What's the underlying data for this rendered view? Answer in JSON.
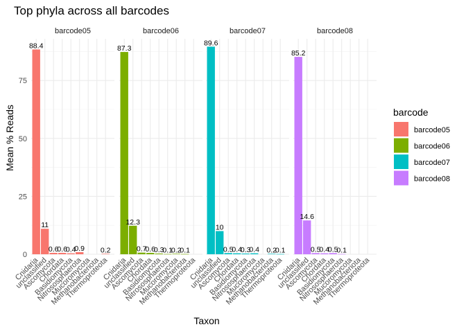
{
  "chart_data": {
    "type": "bar",
    "title": "Top phyla across all barcodes",
    "xlabel": "Taxon",
    "ylabel": "Mean % Reads",
    "ylim": [
      0,
      93
    ],
    "yticks": [
      0,
      25,
      50,
      75
    ],
    "grid": true,
    "legend": {
      "title": "barcode",
      "position": "right"
    },
    "categories": [
      "Cnidaria",
      "unclassified",
      "Ascomycota",
      "Chordata",
      "Basidiomycota",
      "Nitrososphaerota",
      "Mucoromycota",
      "Methanobacteriota",
      "Thermoproteota"
    ],
    "panels": [
      {
        "name": "barcode05",
        "color": "#F8766D",
        "values": [
          88.4,
          11,
          0.6,
          0.6,
          0.4,
          0.9,
          null,
          null,
          0.2
        ],
        "labels": [
          "88.4",
          "11",
          "0.6",
          "0.6",
          "0.4",
          "0.9",
          "",
          "",
          "0.2"
        ]
      },
      {
        "name": "barcode06",
        "color": "#7CAE00",
        "values": [
          87.3,
          12.3,
          0.7,
          0.6,
          0.3,
          0.1,
          0.2,
          0.1,
          null
        ],
        "labels": [
          "87.3",
          "12.3",
          "0.7",
          "0.6",
          "0.3",
          "0.1",
          "0.2",
          "0.1",
          ""
        ]
      },
      {
        "name": "barcode07",
        "color": "#00BFC4",
        "values": [
          89.6,
          10,
          0.5,
          0.4,
          0.3,
          0.4,
          null,
          0.2,
          0.1
        ],
        "labels": [
          "89.6",
          "10",
          "0.5",
          "0.4",
          "0.3",
          "0.4",
          "",
          "0.2",
          "0.1"
        ]
      },
      {
        "name": "barcode08",
        "color": "#C77CFF",
        "values": [
          85.2,
          14.6,
          0.5,
          0.4,
          0.5,
          0.1,
          null,
          null,
          null
        ],
        "labels": [
          "85.2",
          "14.6",
          "0.5",
          "0.4",
          "0.5",
          "0.1",
          "",
          "",
          ""
        ]
      }
    ]
  }
}
